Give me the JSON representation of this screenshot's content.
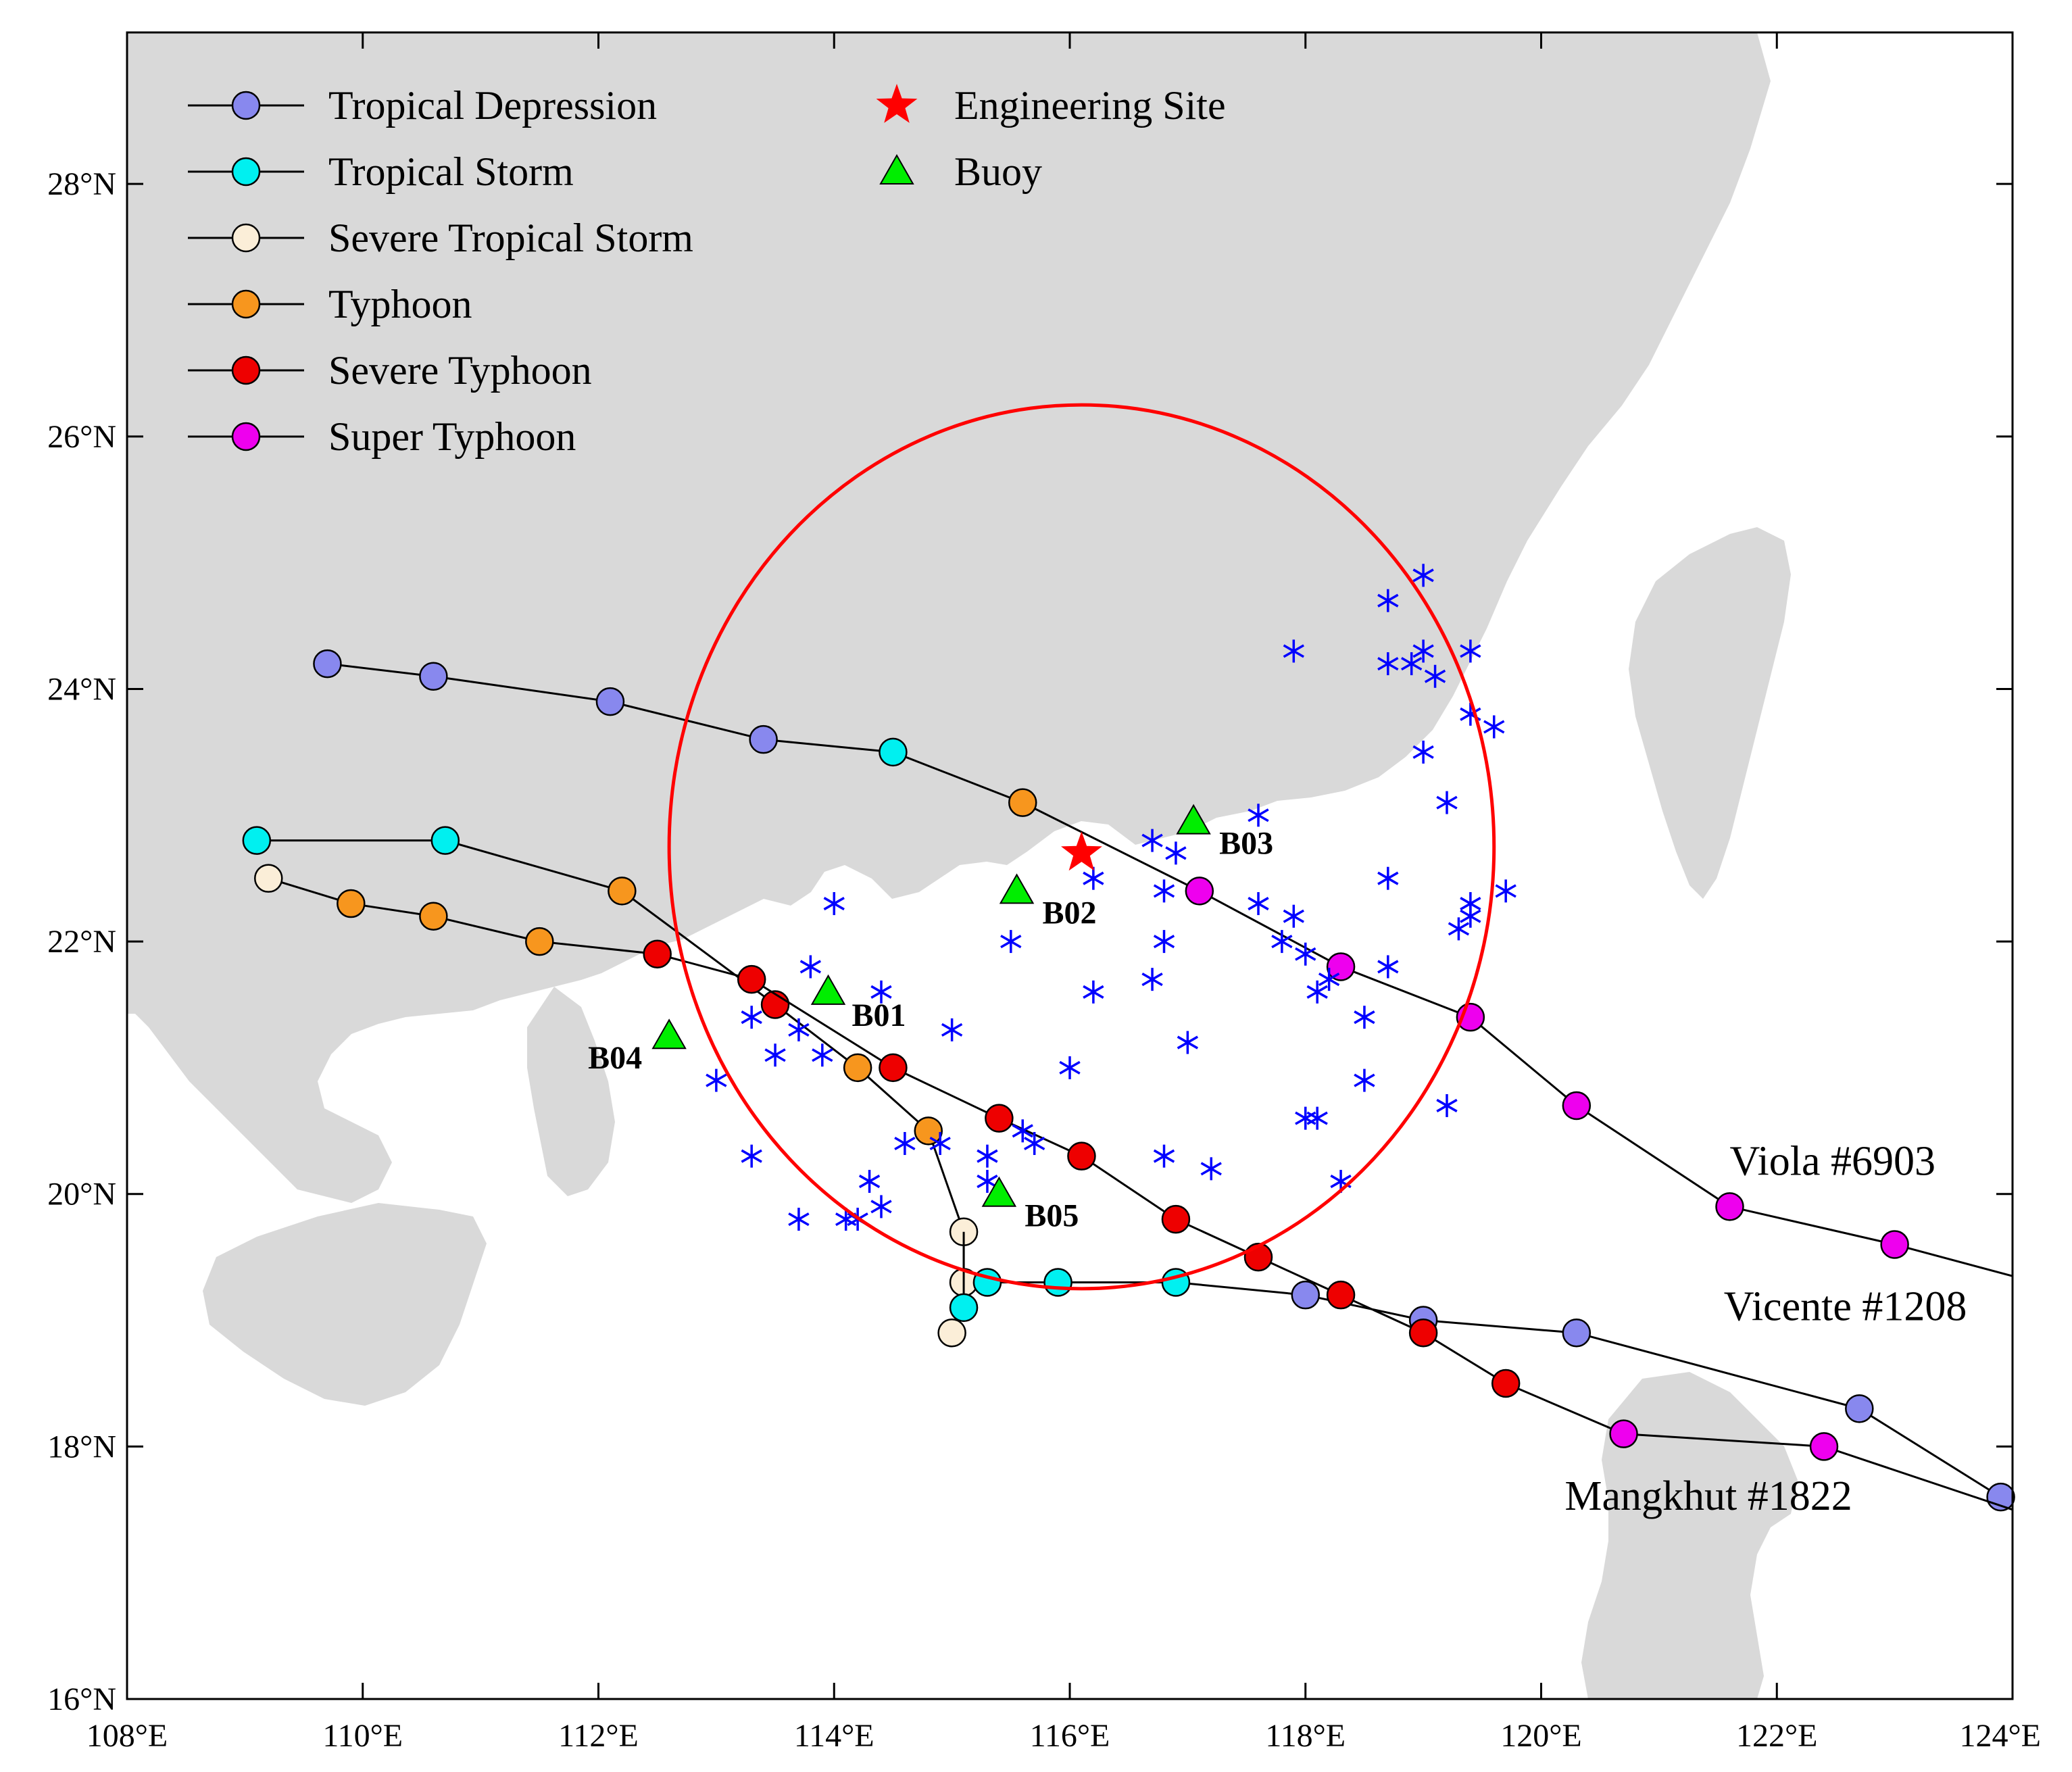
{
  "map": {
    "lon_range": [
      108,
      124
    ],
    "lat_range": [
      16,
      29.2
    ],
    "x_tick_labels": [
      "108°E",
      "110°E",
      "112°E",
      "114°E",
      "116°E",
      "118°E",
      "120°E",
      "122°E",
      "124°E"
    ],
    "y_tick_labels": [
      "16°N",
      "18°N",
      "20°N",
      "22°N",
      "24°N",
      "26°N",
      "28°N"
    ],
    "x_tick_values": [
      108,
      110,
      112,
      114,
      116,
      118,
      120,
      122,
      124
    ],
    "y_tick_values": [
      16,
      18,
      20,
      22,
      24,
      26,
      28
    ],
    "colors": {
      "land": "#d9d9d9",
      "sea": "#ffffff",
      "track_line": "#000000",
      "circle": "#ff0000",
      "cross_marker": "#0000ff",
      "engineering_site": "#ff0000",
      "buoy": "#00ee00"
    },
    "categories": {
      "TD": {
        "label": "Tropical Depression",
        "color": "#8888ee"
      },
      "TS": {
        "label": "Tropical Storm",
        "color": "#00f0f0"
      },
      "STS": {
        "label": "Severe Tropical Storm",
        "color": "#fbeed8"
      },
      "TY": {
        "label": "Typhoon",
        "color": "#f7961e"
      },
      "STY": {
        "label": "Severe Typhoon",
        "color": "#ee0000"
      },
      "SuperTY": {
        "label": "Super Typhoon",
        "color": "#ee00ee"
      }
    },
    "legend": {
      "left": [
        {
          "key": "TD",
          "label": "Tropical Depression"
        },
        {
          "key": "TS",
          "label": "Tropical Storm"
        },
        {
          "key": "STS",
          "label": "Severe Tropical Storm"
        },
        {
          "key": "TY",
          "label": "Typhoon"
        },
        {
          "key": "STY",
          "label": "Severe Typhoon"
        },
        {
          "key": "SuperTY",
          "label": "Super Typhoon"
        }
      ],
      "right": [
        {
          "symbol": "star",
          "label": "Engineering Site"
        },
        {
          "symbol": "triangle",
          "label": "Buoy"
        }
      ]
    },
    "engineering_site": {
      "lon": 116.1,
      "lat": 22.7
    },
    "circle": {
      "center_lon": 116.1,
      "center_lat": 22.75,
      "radius_deg": 3.5
    },
    "buoys": [
      {
        "name": "B01",
        "lon": 113.95,
        "lat": 21.6
      },
      {
        "name": "B02",
        "lon": 115.55,
        "lat": 22.4
      },
      {
        "name": "B03",
        "lon": 117.05,
        "lat": 22.95
      },
      {
        "name": "B04",
        "lon": 112.6,
        "lat": 21.25
      },
      {
        "name": "B05",
        "lon": 115.4,
        "lat": 20.0
      }
    ],
    "tracks": [
      {
        "name": "Viola #6903",
        "points": [
          {
            "lon": 109.7,
            "lat": 24.2,
            "cat": "TD"
          },
          {
            "lon": 110.6,
            "lat": 24.1,
            "cat": "TD"
          },
          {
            "lon": 112.1,
            "lat": 23.9,
            "cat": "TD"
          },
          {
            "lon": 113.4,
            "lat": 23.6,
            "cat": "TD"
          },
          {
            "lon": 114.5,
            "lat": 23.5,
            "cat": "TS"
          },
          {
            "lon": 115.6,
            "lat": 23.1,
            "cat": "TY"
          },
          {
            "lon": 117.1,
            "lat": 22.4,
            "cat": "SuperTY"
          },
          {
            "lon": 118.3,
            "lat": 21.8,
            "cat": "SuperTY"
          },
          {
            "lon": 119.4,
            "lat": 21.4,
            "cat": "SuperTY"
          },
          {
            "lon": 120.3,
            "lat": 20.7,
            "cat": "SuperTY"
          },
          {
            "lon": 121.6,
            "lat": 19.9,
            "cat": "SuperTY"
          },
          {
            "lon": 123.0,
            "lat": 19.6,
            "cat": "SuperTY"
          },
          {
            "lon": 124.0,
            "lat": 19.35,
            "cat": "none"
          }
        ]
      },
      {
        "name": "Vicente #1208",
        "points": [
          {
            "lon": 109.1,
            "lat": 22.8,
            "cat": "TS"
          },
          {
            "lon": 110.7,
            "lat": 22.8,
            "cat": "TS"
          },
          {
            "lon": 112.2,
            "lat": 22.4,
            "cat": "TY"
          },
          {
            "lon": 113.5,
            "lat": 21.5,
            "cat": "STY"
          },
          {
            "lon": 114.2,
            "lat": 21.0,
            "cat": "TY"
          },
          {
            "lon": 114.8,
            "lat": 20.5,
            "cat": "TY"
          },
          {
            "lon": 115.1,
            "lat": 19.7,
            "cat": "STS"
          },
          {
            "lon": 115.1,
            "lat": 19.3,
            "cat": "STS"
          },
          {
            "lon": 115.3,
            "lat": 19.3,
            "cat": "TS"
          },
          {
            "lon": 115.9,
            "lat": 19.3,
            "cat": "TS"
          },
          {
            "lon": 116.9,
            "lat": 19.3,
            "cat": "TS"
          },
          {
            "lon": 118.0,
            "lat": 19.2,
            "cat": "TD"
          },
          {
            "lon": 119.0,
            "lat": 19.0,
            "cat": "TD"
          },
          {
            "lon": 120.3,
            "lat": 18.9,
            "cat": "TD"
          },
          {
            "lon": 122.7,
            "lat": 18.3,
            "cat": "TD"
          },
          {
            "lon": 123.9,
            "lat": 17.6,
            "cat": "TD"
          }
        ]
      },
      {
        "name": "Mangkhut #1822",
        "points": [
          {
            "lon": 109.2,
            "lat": 22.5,
            "cat": "STS"
          },
          {
            "lon": 109.9,
            "lat": 22.3,
            "cat": "TY"
          },
          {
            "lon": 110.6,
            "lat": 22.2,
            "cat": "TY"
          },
          {
            "lon": 111.5,
            "lat": 22.0,
            "cat": "TY"
          },
          {
            "lon": 112.5,
            "lat": 21.9,
            "cat": "STY"
          },
          {
            "lon": 113.3,
            "lat": 21.7,
            "cat": "STY"
          },
          {
            "lon": 114.5,
            "lat": 21.0,
            "cat": "STY"
          },
          {
            "lon": 115.4,
            "lat": 20.6,
            "cat": "STY"
          },
          {
            "lon": 116.1,
            "lat": 20.3,
            "cat": "STY"
          },
          {
            "lon": 116.9,
            "lat": 19.8,
            "cat": "STY"
          },
          {
            "lon": 117.6,
            "lat": 19.5,
            "cat": "STY"
          },
          {
            "lon": 118.3,
            "lat": 19.2,
            "cat": "STY"
          },
          {
            "lon": 119.0,
            "lat": 18.9,
            "cat": "STY"
          },
          {
            "lon": 119.7,
            "lat": 18.5,
            "cat": "STY"
          },
          {
            "lon": 120.7,
            "lat": 18.1,
            "cat": "SuperTY"
          },
          {
            "lon": 122.4,
            "lat": 18.0,
            "cat": "SuperTY"
          },
          {
            "lon": 124.0,
            "lat": 17.5,
            "cat": "none"
          }
        ]
      },
      {
        "name": "",
        "points": [
          {
            "lon": 115.1,
            "lat": 19.7,
            "cat": "none"
          },
          {
            "lon": 115.1,
            "lat": 19.1,
            "cat": "TS"
          },
          {
            "lon": 115.0,
            "lat": 18.9,
            "cat": "STS"
          }
        ]
      }
    ],
    "track_labels": [
      {
        "text": "Viola #6903",
        "lon": 121.6,
        "lat": 20.15
      },
      {
        "text": "Vicente #1208",
        "lon": 121.55,
        "lat": 19.0
      },
      {
        "text": "Mangkhut #1822",
        "lon": 120.2,
        "lat": 17.5
      }
    ],
    "stations": [
      [
        118.7,
        24.7
      ],
      [
        119.0,
        24.9
      ],
      [
        117.9,
        24.3
      ],
      [
        118.7,
        24.2
      ],
      [
        118.9,
        24.2
      ],
      [
        119.0,
        24.3
      ],
      [
        119.1,
        24.1
      ],
      [
        119.4,
        24.3
      ],
      [
        119.4,
        23.8
      ],
      [
        119.6,
        23.7
      ],
      [
        119.0,
        23.5
      ],
      [
        119.2,
        23.1
      ],
      [
        117.6,
        23.0
      ],
      [
        116.7,
        22.8
      ],
      [
        116.9,
        22.7
      ],
      [
        116.2,
        22.5
      ],
      [
        116.8,
        22.4
      ],
      [
        117.6,
        22.3
      ],
      [
        117.9,
        22.2
      ],
      [
        118.7,
        22.5
      ],
      [
        119.4,
        22.3
      ],
      [
        119.4,
        22.2
      ],
      [
        119.3,
        22.1
      ],
      [
        119.7,
        22.4
      ],
      [
        117.8,
        22.0
      ],
      [
        118.0,
        21.9
      ],
      [
        118.2,
        21.7
      ],
      [
        118.1,
        21.6
      ],
      [
        118.7,
        21.8
      ],
      [
        118.5,
        21.4
      ],
      [
        116.8,
        22.0
      ],
      [
        116.7,
        21.7
      ],
      [
        115.5,
        22.0
      ],
      [
        116.2,
        21.6
      ],
      [
        117.0,
        21.2
      ],
      [
        114.0,
        22.3
      ],
      [
        113.8,
        21.8
      ],
      [
        114.4,
        21.6
      ],
      [
        113.3,
        21.4
      ],
      [
        113.7,
        21.3
      ],
      [
        113.5,
        21.1
      ],
      [
        113.9,
        21.1
      ],
      [
        115.0,
        21.3
      ],
      [
        116.0,
        21.0
      ],
      [
        113.0,
        20.9
      ],
      [
        118.5,
        20.9
      ],
      [
        119.2,
        20.7
      ],
      [
        118.0,
        20.6
      ],
      [
        118.1,
        20.6
      ],
      [
        115.6,
        20.5
      ],
      [
        115.7,
        20.4
      ],
      [
        114.6,
        20.4
      ],
      [
        114.9,
        20.4
      ],
      [
        113.3,
        20.3
      ],
      [
        115.3,
        20.3
      ],
      [
        116.8,
        20.3
      ],
      [
        117.2,
        20.2
      ],
      [
        115.3,
        20.1
      ],
      [
        114.3,
        20.1
      ],
      [
        118.3,
        20.1
      ],
      [
        114.4,
        19.9
      ],
      [
        114.1,
        19.8
      ],
      [
        114.2,
        19.8
      ],
      [
        113.7,
        19.8
      ]
    ]
  }
}
